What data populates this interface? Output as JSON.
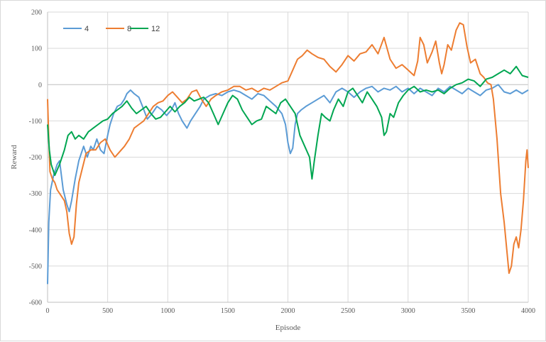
{
  "chart_data": {
    "type": "line",
    "title": "",
    "xlabel": "Episode",
    "ylabel": "Reward",
    "xlim": [
      0,
      4000
    ],
    "ylim": [
      -600,
      200
    ],
    "x_ticks": [
      0,
      500,
      1000,
      1500,
      2000,
      2500,
      3000,
      3500,
      4000
    ],
    "y_ticks": [
      200,
      100,
      0,
      -100,
      -200,
      -300,
      -400,
      -500,
      -600
    ],
    "grid": true,
    "legend_position": "top-left",
    "series": [
      {
        "name": "4",
        "color": "#5b9bd5",
        "points": [
          [
            0,
            -550
          ],
          [
            10,
            -380
          ],
          [
            25,
            -290
          ],
          [
            50,
            -250
          ],
          [
            80,
            -220
          ],
          [
            100,
            -210
          ],
          [
            130,
            -290
          ],
          [
            160,
            -330
          ],
          [
            180,
            -350
          ],
          [
            200,
            -320
          ],
          [
            230,
            -260
          ],
          [
            260,
            -210
          ],
          [
            300,
            -170
          ],
          [
            330,
            -200
          ],
          [
            360,
            -170
          ],
          [
            380,
            -180
          ],
          [
            410,
            -150
          ],
          [
            440,
            -180
          ],
          [
            470,
            -190
          ],
          [
            500,
            -140
          ],
          [
            520,
            -110
          ],
          [
            550,
            -80
          ],
          [
            580,
            -60
          ],
          [
            610,
            -55
          ],
          [
            640,
            -40
          ],
          [
            660,
            -25
          ],
          [
            690,
            -15
          ],
          [
            720,
            -25
          ],
          [
            760,
            -35
          ],
          [
            790,
            -60
          ],
          [
            830,
            -95
          ],
          [
            870,
            -80
          ],
          [
            910,
            -60
          ],
          [
            950,
            -70
          ],
          [
            990,
            -85
          ],
          [
            1030,
            -70
          ],
          [
            1060,
            -50
          ],
          [
            1090,
            -80
          ],
          [
            1120,
            -100
          ],
          [
            1160,
            -120
          ],
          [
            1190,
            -100
          ],
          [
            1230,
            -80
          ],
          [
            1270,
            -60
          ],
          [
            1300,
            -40
          ],
          [
            1350,
            -30
          ],
          [
            1400,
            -25
          ],
          [
            1450,
            -30
          ],
          [
            1500,
            -20
          ],
          [
            1550,
            -15
          ],
          [
            1600,
            -20
          ],
          [
            1650,
            -30
          ],
          [
            1700,
            -40
          ],
          [
            1750,
            -25
          ],
          [
            1800,
            -30
          ],
          [
            1850,
            -45
          ],
          [
            1900,
            -60
          ],
          [
            1950,
            -80
          ],
          [
            1980,
            -110
          ],
          [
            2000,
            -160
          ],
          [
            2020,
            -190
          ],
          [
            2040,
            -175
          ],
          [
            2060,
            -110
          ],
          [
            2080,
            -80
          ],
          [
            2110,
            -70
          ],
          [
            2150,
            -60
          ],
          [
            2200,
            -50
          ],
          [
            2250,
            -40
          ],
          [
            2300,
            -30
          ],
          [
            2350,
            -50
          ],
          [
            2400,
            -20
          ],
          [
            2450,
            -10
          ],
          [
            2500,
            -20
          ],
          [
            2550,
            -35
          ],
          [
            2600,
            -20
          ],
          [
            2650,
            -10
          ],
          [
            2700,
            -5
          ],
          [
            2750,
            -20
          ],
          [
            2800,
            -10
          ],
          [
            2850,
            -15
          ],
          [
            2900,
            -5
          ],
          [
            2950,
            -20
          ],
          [
            3000,
            -10
          ],
          [
            3050,
            -25
          ],
          [
            3100,
            -10
          ],
          [
            3150,
            -20
          ],
          [
            3200,
            -30
          ],
          [
            3250,
            -10
          ],
          [
            3300,
            -20
          ],
          [
            3350,
            -5
          ],
          [
            3400,
            -15
          ],
          [
            3450,
            -25
          ],
          [
            3500,
            -10
          ],
          [
            3550,
            -20
          ],
          [
            3600,
            -30
          ],
          [
            3650,
            -15
          ],
          [
            3700,
            -10
          ],
          [
            3750,
            0
          ],
          [
            3800,
            -20
          ],
          [
            3850,
            -25
          ],
          [
            3900,
            -15
          ],
          [
            3950,
            -25
          ],
          [
            4000,
            -15
          ]
        ]
      },
      {
        "name": "8",
        "color": "#ed7d31",
        "points": [
          [
            0,
            -40
          ],
          [
            10,
            -150
          ],
          [
            20,
            -240
          ],
          [
            40,
            -260
          ],
          [
            60,
            -270
          ],
          [
            80,
            -290
          ],
          [
            100,
            -300
          ],
          [
            120,
            -310
          ],
          [
            140,
            -320
          ],
          [
            160,
            -350
          ],
          [
            180,
            -410
          ],
          [
            200,
            -440
          ],
          [
            220,
            -420
          ],
          [
            240,
            -330
          ],
          [
            260,
            -270
          ],
          [
            290,
            -230
          ],
          [
            320,
            -190
          ],
          [
            360,
            -180
          ],
          [
            400,
            -180
          ],
          [
            440,
            -160
          ],
          [
            480,
            -150
          ],
          [
            520,
            -180
          ],
          [
            560,
            -200
          ],
          [
            600,
            -185
          ],
          [
            640,
            -170
          ],
          [
            680,
            -150
          ],
          [
            720,
            -120
          ],
          [
            760,
            -110
          ],
          [
            800,
            -100
          ],
          [
            840,
            -80
          ],
          [
            880,
            -60
          ],
          [
            920,
            -50
          ],
          [
            960,
            -45
          ],
          [
            1000,
            -30
          ],
          [
            1040,
            -20
          ],
          [
            1080,
            -35
          ],
          [
            1120,
            -50
          ],
          [
            1160,
            -40
          ],
          [
            1200,
            -20
          ],
          [
            1240,
            -15
          ],
          [
            1280,
            -40
          ],
          [
            1320,
            -60
          ],
          [
            1360,
            -40
          ],
          [
            1400,
            -30
          ],
          [
            1450,
            -20
          ],
          [
            1500,
            -15
          ],
          [
            1550,
            -5
          ],
          [
            1600,
            -5
          ],
          [
            1650,
            -15
          ],
          [
            1700,
            -10
          ],
          [
            1750,
            -20
          ],
          [
            1800,
            -10
          ],
          [
            1850,
            -15
          ],
          [
            1900,
            -5
          ],
          [
            1950,
            5
          ],
          [
            2000,
            10
          ],
          [
            2040,
            40
          ],
          [
            2080,
            70
          ],
          [
            2120,
            80
          ],
          [
            2160,
            95
          ],
          [
            2200,
            85
          ],
          [
            2250,
            75
          ],
          [
            2300,
            70
          ],
          [
            2350,
            50
          ],
          [
            2400,
            35
          ],
          [
            2450,
            55
          ],
          [
            2500,
            80
          ],
          [
            2550,
            65
          ],
          [
            2600,
            85
          ],
          [
            2650,
            90
          ],
          [
            2700,
            110
          ],
          [
            2750,
            85
          ],
          [
            2800,
            130
          ],
          [
            2850,
            70
          ],
          [
            2900,
            45
          ],
          [
            2950,
            55
          ],
          [
            3000,
            40
          ],
          [
            3050,
            25
          ],
          [
            3080,
            65
          ],
          [
            3100,
            130
          ],
          [
            3130,
            110
          ],
          [
            3160,
            60
          ],
          [
            3200,
            90
          ],
          [
            3230,
            120
          ],
          [
            3260,
            60
          ],
          [
            3280,
            30
          ],
          [
            3300,
            55
          ],
          [
            3330,
            110
          ],
          [
            3360,
            95
          ],
          [
            3400,
            150
          ],
          [
            3430,
            170
          ],
          [
            3460,
            165
          ],
          [
            3490,
            105
          ],
          [
            3520,
            60
          ],
          [
            3560,
            70
          ],
          [
            3600,
            30
          ],
          [
            3630,
            20
          ],
          [
            3660,
            5
          ],
          [
            3690,
            0
          ],
          [
            3710,
            -40
          ],
          [
            3740,
            -150
          ],
          [
            3770,
            -300
          ],
          [
            3800,
            -380
          ],
          [
            3820,
            -450
          ],
          [
            3840,
            -520
          ],
          [
            3860,
            -500
          ],
          [
            3880,
            -440
          ],
          [
            3900,
            -420
          ],
          [
            3920,
            -450
          ],
          [
            3940,
            -400
          ],
          [
            3960,
            -320
          ],
          [
            3980,
            -210
          ],
          [
            3990,
            -180
          ],
          [
            4000,
            -230
          ]
        ]
      },
      {
        "name": "12",
        "color": "#00a651",
        "points": [
          [
            0,
            -110
          ],
          [
            15,
            -180
          ],
          [
            30,
            -220
          ],
          [
            60,
            -250
          ],
          [
            100,
            -220
          ],
          [
            140,
            -180
          ],
          [
            170,
            -140
          ],
          [
            200,
            -130
          ],
          [
            230,
            -150
          ],
          [
            260,
            -140
          ],
          [
            300,
            -150
          ],
          [
            340,
            -130
          ],
          [
            380,
            -120
          ],
          [
            420,
            -110
          ],
          [
            460,
            -100
          ],
          [
            500,
            -95
          ],
          [
            540,
            -80
          ],
          [
            580,
            -70
          ],
          [
            620,
            -60
          ],
          [
            660,
            -45
          ],
          [
            700,
            -65
          ],
          [
            740,
            -80
          ],
          [
            780,
            -70
          ],
          [
            820,
            -60
          ],
          [
            860,
            -80
          ],
          [
            900,
            -95
          ],
          [
            940,
            -90
          ],
          [
            980,
            -75
          ],
          [
            1020,
            -60
          ],
          [
            1060,
            -75
          ],
          [
            1100,
            -60
          ],
          [
            1140,
            -50
          ],
          [
            1180,
            -35
          ],
          [
            1220,
            -45
          ],
          [
            1260,
            -40
          ],
          [
            1300,
            -35
          ],
          [
            1340,
            -50
          ],
          [
            1380,
            -80
          ],
          [
            1420,
            -110
          ],
          [
            1460,
            -80
          ],
          [
            1500,
            -50
          ],
          [
            1540,
            -30
          ],
          [
            1580,
            -40
          ],
          [
            1620,
            -70
          ],
          [
            1660,
            -90
          ],
          [
            1700,
            -110
          ],
          [
            1740,
            -100
          ],
          [
            1780,
            -95
          ],
          [
            1820,
            -60
          ],
          [
            1860,
            -70
          ],
          [
            1900,
            -80
          ],
          [
            1940,
            -50
          ],
          [
            1980,
            -40
          ],
          [
            2020,
            -60
          ],
          [
            2060,
            -80
          ],
          [
            2100,
            -140
          ],
          [
            2140,
            -170
          ],
          [
            2180,
            -200
          ],
          [
            2200,
            -260
          ],
          [
            2220,
            -210
          ],
          [
            2250,
            -140
          ],
          [
            2280,
            -80
          ],
          [
            2310,
            -90
          ],
          [
            2350,
            -100
          ],
          [
            2380,
            -70
          ],
          [
            2420,
            -40
          ],
          [
            2460,
            -60
          ],
          [
            2500,
            -20
          ],
          [
            2540,
            -10
          ],
          [
            2580,
            -30
          ],
          [
            2620,
            -50
          ],
          [
            2660,
            -20
          ],
          [
            2700,
            -40
          ],
          [
            2740,
            -60
          ],
          [
            2780,
            -90
          ],
          [
            2800,
            -140
          ],
          [
            2820,
            -130
          ],
          [
            2850,
            -80
          ],
          [
            2880,
            -90
          ],
          [
            2920,
            -50
          ],
          [
            2960,
            -30
          ],
          [
            3000,
            -15
          ],
          [
            3050,
            -5
          ],
          [
            3100,
            -20
          ],
          [
            3150,
            -15
          ],
          [
            3200,
            -20
          ],
          [
            3250,
            -15
          ],
          [
            3300,
            -25
          ],
          [
            3350,
            -10
          ],
          [
            3400,
            0
          ],
          [
            3450,
            5
          ],
          [
            3500,
            15
          ],
          [
            3550,
            10
          ],
          [
            3600,
            -5
          ],
          [
            3650,
            15
          ],
          [
            3700,
            20
          ],
          [
            3750,
            30
          ],
          [
            3800,
            40
          ],
          [
            3850,
            30
          ],
          [
            3900,
            50
          ],
          [
            3950,
            25
          ],
          [
            4000,
            20
          ]
        ]
      }
    ]
  }
}
